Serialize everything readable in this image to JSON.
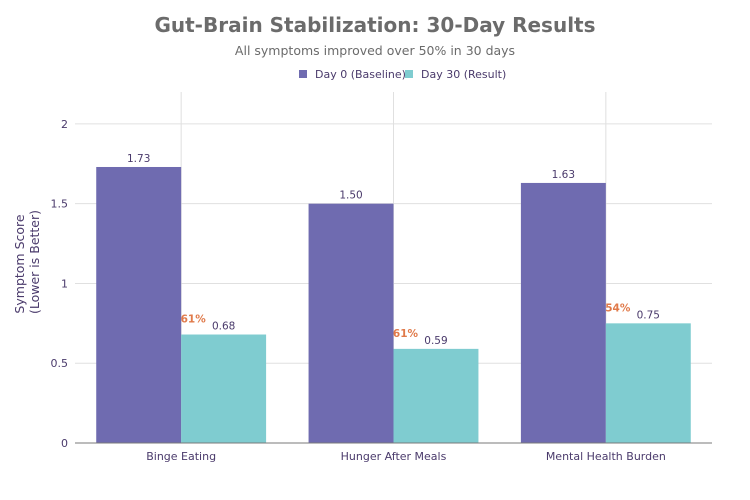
{
  "chart_data": {
    "type": "bar",
    "title": "Gut-Brain Stabilization: 30-Day Results",
    "subtitle": "All symptoms improved over 50% in 30 days",
    "ylabel_lines": [
      "Symptom Score",
      "(Lower is Better)"
    ],
    "xlabel": "",
    "categories": [
      "Binge Eating",
      "Hunger After Meals",
      "Mental Health Burden"
    ],
    "series": [
      {
        "name": "Day 0 (Baseline)",
        "color": "#6f6bb0",
        "values": [
          1.73,
          1.5,
          1.63
        ],
        "labels": [
          "1.73",
          "1.50",
          "1.63"
        ]
      },
      {
        "name": "Day 30 (Result)",
        "color": "#7fccd0",
        "values": [
          0.68,
          0.59,
          0.75
        ],
        "labels": [
          "0.68",
          "0.59",
          "0.75"
        ]
      }
    ],
    "improvement_labels": [
      "61%",
      "61%",
      "54%"
    ],
    "ylim": [
      0,
      2.2
    ],
    "yticks": [
      0,
      0.5,
      1,
      1.5,
      2
    ],
    "ytick_labels": [
      "0",
      "0.5",
      "1",
      "1.5",
      "2"
    ],
    "grid": true,
    "legend_position": "top-center",
    "colors": {
      "text": "#4a3a6b",
      "title": "#6b6b6b",
      "grid": "#e0e0e0",
      "axis": "#7a7a7a",
      "improvement": "#e07a4a"
    }
  }
}
